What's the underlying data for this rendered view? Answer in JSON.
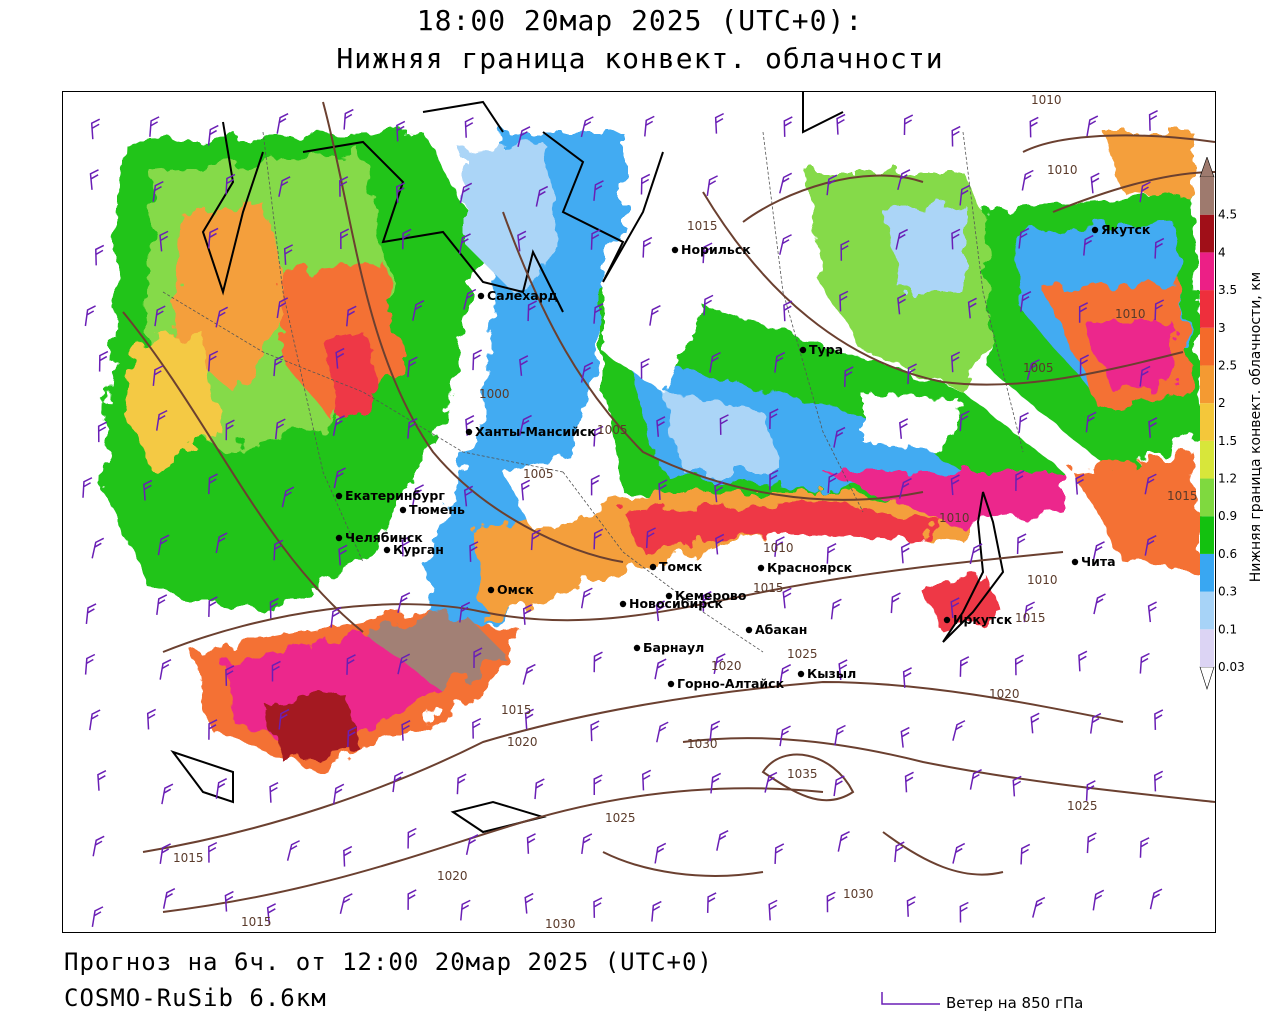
{
  "title": {
    "line1": "18:00 20мар 2025 (UTC+0):",
    "line2": "Нижняя граница конвект. облачности"
  },
  "footer": {
    "forecast": "Прогноз на 6ч. от 12:00 20мар 2025 (UTC+0)",
    "model": "COSMO-RuSib 6.6км",
    "wind_legend": "Ветер на 850 гПа"
  },
  "legend": {
    "title": "Нижняя граница конвект. облачности, км",
    "levels": [
      {
        "label": "0.03",
        "color": "#dcd4f4"
      },
      {
        "label": "0.1",
        "color": "#a7d3f7"
      },
      {
        "label": "0.3",
        "color": "#39a7f2"
      },
      {
        "label": "0.6",
        "color": "#13c10f"
      },
      {
        "label": "0.9",
        "color": "#7fd93f"
      },
      {
        "label": "1.2",
        "color": "#d8e63a"
      },
      {
        "label": "1.5",
        "color": "#f4c73a"
      },
      {
        "label": "2",
        "color": "#f49a32"
      },
      {
        "label": "2.5",
        "color": "#f46a2a"
      },
      {
        "label": "3",
        "color": "#ee2f3c"
      },
      {
        "label": "3.5",
        "color": "#ec1f86"
      },
      {
        "label": "4",
        "color": "#a00f18"
      },
      {
        "label": "4.5",
        "color": "#9e7a6e"
      }
    ]
  },
  "cities": [
    {
      "name": "Норильск"
    },
    {
      "name": "Якутск"
    },
    {
      "name": "Салехард"
    },
    {
      "name": "Тура"
    },
    {
      "name": "Ханты-Мансийск"
    },
    {
      "name": "Екатеринбург"
    },
    {
      "name": "Тюмень"
    },
    {
      "name": "Челябинск"
    },
    {
      "name": "Курган"
    },
    {
      "name": "Омск"
    },
    {
      "name": "Томск"
    },
    {
      "name": "Красноярск"
    },
    {
      "name": "Новосибирск"
    },
    {
      "name": "Кемерово"
    },
    {
      "name": "Абакан"
    },
    {
      "name": "Барнаул"
    },
    {
      "name": "Горно-Алтайск"
    },
    {
      "name": "Кызыл"
    },
    {
      "name": "Иркутск"
    },
    {
      "name": "Чита"
    }
  ],
  "isobar_labels": [
    "1010",
    "1010",
    "1015",
    "1000",
    "1005",
    "1005",
    "1010",
    "1010",
    "1010",
    "1015",
    "1015",
    "1005",
    "1015",
    "1025",
    "1020",
    "1015",
    "1020",
    "1030",
    "1035",
    "1020",
    "1025",
    "1025",
    "1015",
    "1020",
    "1030",
    "1015",
    "1030",
    "1010"
  ]
}
